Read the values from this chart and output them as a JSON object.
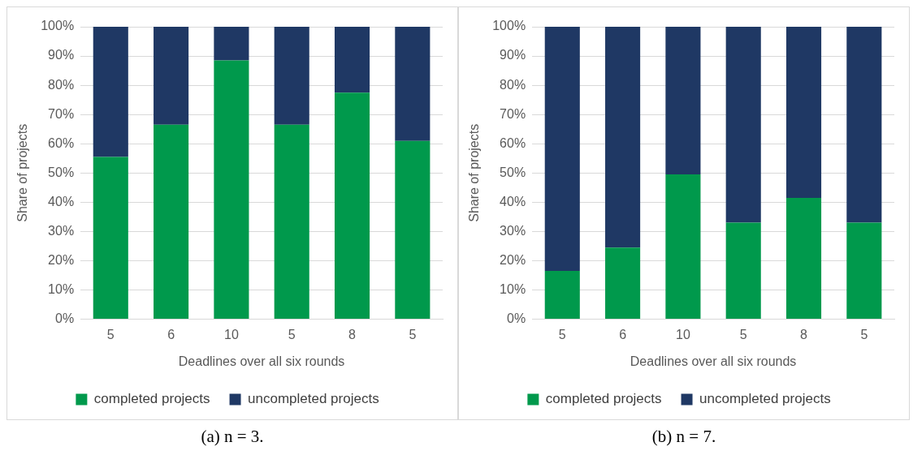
{
  "chart_data": [
    {
      "type": "bar",
      "stacked": true,
      "xlabel": "Deadlines over all six rounds",
      "ylabel": "Share of projects",
      "categories": [
        "5",
        "6",
        "10",
        "5",
        "8",
        "5"
      ],
      "ylim": [
        0,
        100
      ],
      "yticks": [
        {
          "value": 0,
          "label": "0%"
        },
        {
          "value": 10,
          "label": "10%"
        },
        {
          "value": 20,
          "label": "20%"
        },
        {
          "value": 30,
          "label": "30%"
        },
        {
          "value": 40,
          "label": "40%"
        },
        {
          "value": 50,
          "label": "50%"
        },
        {
          "value": 60,
          "label": "60%"
        },
        {
          "value": 70,
          "label": "70%"
        },
        {
          "value": 80,
          "label": "80%"
        },
        {
          "value": 90,
          "label": "90%"
        },
        {
          "value": 100,
          "label": "100%"
        }
      ],
      "grid": "y",
      "legend": "bottom",
      "series": [
        {
          "name": "completed projects",
          "color": "#00994c",
          "values": [
            55.5,
            66.5,
            88.5,
            66.5,
            77.5,
            61
          ]
        },
        {
          "name": "uncompleted projects",
          "color": "#1f3864",
          "values": [
            44.5,
            33.5,
            11.5,
            33.5,
            22.5,
            39
          ]
        }
      ],
      "annotations": [
        "(a) n = 3."
      ]
    },
    {
      "type": "bar",
      "stacked": true,
      "xlabel": "Deadlines over all six rounds",
      "ylabel": "Share of projects",
      "categories": [
        "5",
        "6",
        "10",
        "5",
        "8",
        "5"
      ],
      "ylim": [
        0,
        100
      ],
      "yticks": [
        {
          "value": 0,
          "label": "0%"
        },
        {
          "value": 10,
          "label": "10%"
        },
        {
          "value": 20,
          "label": "20%"
        },
        {
          "value": 30,
          "label": "30%"
        },
        {
          "value": 40,
          "label": "40%"
        },
        {
          "value": 50,
          "label": "50%"
        },
        {
          "value": 60,
          "label": "60%"
        },
        {
          "value": 70,
          "label": "70%"
        },
        {
          "value": 80,
          "label": "80%"
        },
        {
          "value": 90,
          "label": "90%"
        },
        {
          "value": 100,
          "label": "100%"
        }
      ],
      "grid": "y",
      "legend": "bottom",
      "series": [
        {
          "name": "completed projects",
          "color": "#00994c",
          "values": [
            16.5,
            24.5,
            49.5,
            33,
            41.5,
            33
          ]
        },
        {
          "name": "uncompleted projects",
          "color": "#1f3864",
          "values": [
            83.5,
            75.5,
            50.5,
            67,
            58.5,
            67
          ]
        }
      ],
      "annotations": [
        "(b) n = 7."
      ]
    }
  ]
}
